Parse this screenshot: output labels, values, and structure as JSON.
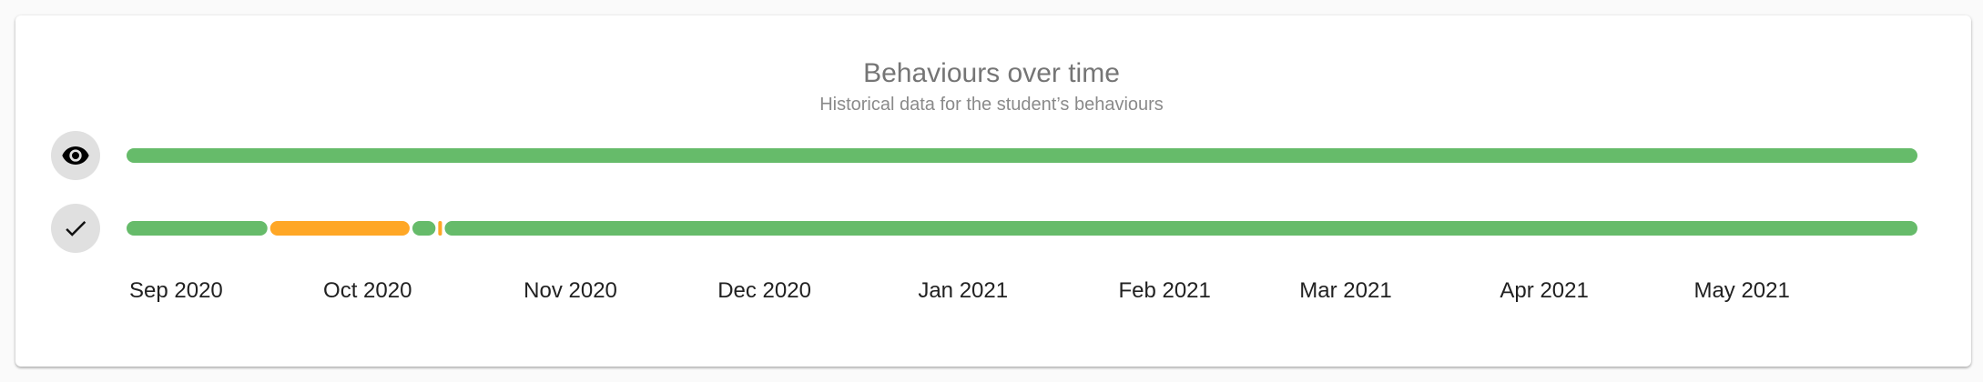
{
  "chart_data": {
    "type": "timeline",
    "title": "Behaviours over time",
    "subtitle": "Historical data for the student’s behaviours",
    "xrange": [
      "2020-09-01",
      "2021-06-05"
    ],
    "tick_labels": [
      "Sep 2020",
      "Oct 2020",
      "Nov 2020",
      "Dec 2020",
      "Jan 2021",
      "Feb 2021",
      "Mar 2021",
      "Apr 2021",
      "May 2021"
    ],
    "tick_dates": [
      "2020-09-01",
      "2020-10-01",
      "2020-11-01",
      "2020-12-01",
      "2021-01-01",
      "2021-02-01",
      "2021-03-01",
      "2021-04-01",
      "2021-05-01"
    ],
    "colors": {
      "good": "#66bb6a",
      "warning": "#ffa726"
    },
    "rows": [
      {
        "icon": "eye-icon",
        "segments": [
          {
            "start": "2020-09-01",
            "end": "2021-06-05",
            "status": "good"
          }
        ]
      },
      {
        "icon": "check-icon",
        "segments": [
          {
            "start": "2020-09-01",
            "end": "2020-09-23",
            "status": "good"
          },
          {
            "start": "2020-09-23",
            "end": "2020-10-15",
            "status": "warning"
          },
          {
            "start": "2020-10-15",
            "end": "2020-10-19",
            "status": "good"
          },
          {
            "start": "2020-10-19",
            "end": "2020-10-20",
            "status": "warning"
          },
          {
            "start": "2020-10-20",
            "end": "2021-06-05",
            "status": "good"
          }
        ]
      }
    ]
  }
}
